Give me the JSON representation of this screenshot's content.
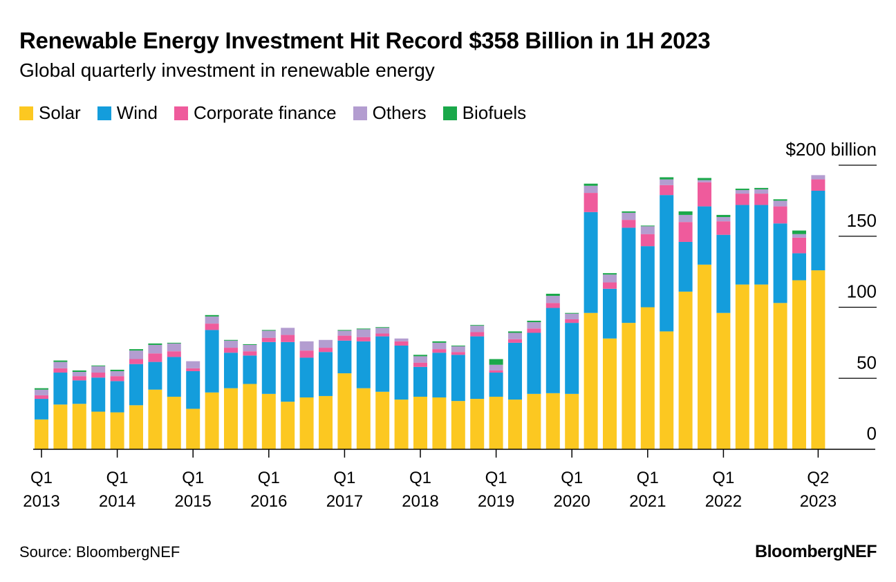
{
  "title": "Renewable Energy Investment Hit Record $358 Billion in 1H 2023",
  "subtitle": "Global quarterly investment in renewable energy",
  "source": "Source: BloombergNEF",
  "brand": "BloombergNEF",
  "colors": {
    "Solar": "#fcc821",
    "Wind": "#149ddc",
    "Corporate finance": "#ef5b9c",
    "Others": "#b39dd0",
    "Biofuels": "#1aa84a"
  },
  "chart_data": {
    "type": "bar",
    "stacked": true,
    "title": "Renewable Energy Investment Hit Record $358 Billion in 1H 2023",
    "subtitle": "Global quarterly investment in renewable energy",
    "xlabel": "",
    "ylabel": "",
    "ylim": [
      0,
      200
    ],
    "y_ticks": [
      {
        "value": 0,
        "label": "0"
      },
      {
        "value": 50,
        "label": "50"
      },
      {
        "value": 100,
        "label": "100"
      },
      {
        "value": 150,
        "label": "150"
      },
      {
        "value": 200,
        "label": "$200 billion"
      }
    ],
    "x_ticks": [
      {
        "index": 0,
        "line1": "Q1",
        "line2": "2013"
      },
      {
        "index": 4,
        "line1": "Q1",
        "line2": "2014"
      },
      {
        "index": 8,
        "line1": "Q1",
        "line2": "2015"
      },
      {
        "index": 12,
        "line1": "Q1",
        "line2": "2016"
      },
      {
        "index": 16,
        "line1": "Q1",
        "line2": "2017"
      },
      {
        "index": 20,
        "line1": "Q1",
        "line2": "2018"
      },
      {
        "index": 24,
        "line1": "Q1",
        "line2": "2019"
      },
      {
        "index": 28,
        "line1": "Q1",
        "line2": "2020"
      },
      {
        "index": 32,
        "line1": "Q1",
        "line2": "2021"
      },
      {
        "index": 36,
        "line1": "Q1",
        "line2": "2022"
      },
      {
        "index": 41,
        "line1": "Q2",
        "line2": "2023"
      }
    ],
    "legend_position": "top-left",
    "categories": [
      "Q1 2013",
      "Q2 2013",
      "Q3 2013",
      "Q4 2013",
      "Q1 2014",
      "Q2 2014",
      "Q3 2014",
      "Q4 2014",
      "Q1 2015",
      "Q2 2015",
      "Q3 2015",
      "Q4 2015",
      "Q1 2016",
      "Q2 2016",
      "Q3 2016",
      "Q4 2016",
      "Q1 2017",
      "Q2 2017",
      "Q3 2017",
      "Q4 2017",
      "Q1 2018",
      "Q2 2018",
      "Q3 2018",
      "Q4 2018",
      "Q1 2019",
      "Q2 2019",
      "Q3 2019",
      "Q4 2019",
      "Q1 2020",
      "Q2 2020",
      "Q3 2020",
      "Q4 2020",
      "Q1 2021",
      "Q2 2021",
      "Q3 2021",
      "Q4 2021",
      "Q1 2022",
      "Q2 2022",
      "Q3 2022",
      "Q4 2022",
      "Q1 2023",
      "Q2 2023"
    ],
    "series": [
      {
        "name": "Solar",
        "values": [
          21,
          31.5,
          32,
          26.5,
          26,
          31,
          42,
          37,
          28.5,
          40,
          43,
          46,
          39,
          33.5,
          36.5,
          37.5,
          53.5,
          43,
          40.5,
          35,
          37,
          36.5,
          34,
          35.5,
          37,
          35,
          39,
          39.5,
          39,
          96,
          78,
          89,
          100,
          83,
          111,
          130,
          96,
          116,
          116,
          103,
          119,
          126
        ]
      },
      {
        "name": "Wind",
        "values": [
          14.5,
          22.5,
          16.5,
          24,
          22,
          29,
          19.5,
          28,
          26.5,
          44,
          25,
          20,
          36.5,
          42,
          28,
          31,
          23,
          33,
          39,
          38,
          21,
          31.5,
          32.5,
          44,
          17,
          40,
          43,
          60,
          50,
          71,
          35,
          67,
          43,
          96,
          35,
          41,
          55,
          56,
          56,
          56,
          19,
          56
        ]
      },
      {
        "name": "Corporate finance",
        "values": [
          2.5,
          3,
          3,
          3.5,
          3.5,
          3.5,
          6,
          4,
          2,
          4.5,
          3.5,
          3,
          3,
          5,
          5,
          3,
          3.5,
          3,
          2,
          3,
          3,
          2.5,
          2,
          3,
          1.5,
          2.5,
          3,
          3.5,
          2.5,
          13.5,
          4.5,
          5.5,
          8.5,
          7,
          14,
          17,
          9.5,
          8,
          8,
          12,
          11,
          8
        ]
      },
      {
        "name": "Others",
        "values": [
          4,
          4.5,
          3,
          4.5,
          3.5,
          6,
          6,
          5.5,
          5,
          5,
          5,
          4.5,
          5,
          5,
          6.5,
          5.5,
          3.5,
          5.5,
          4,
          2,
          4.5,
          4.5,
          4,
          4.5,
          4,
          4.5,
          4.5,
          5,
          4,
          5,
          5.5,
          5,
          5.5,
          4,
          5,
          1.5,
          3,
          2.5,
          3,
          4,
          2.5,
          3
        ]
      },
      {
        "name": "Biofuels",
        "values": [
          1,
          1,
          1,
          0.5,
          1,
          1,
          1,
          0.5,
          0,
          1,
          0.5,
          0.5,
          0.5,
          0,
          0,
          0,
          0.5,
          0.5,
          0.5,
          0,
          1,
          1,
          0.5,
          0.5,
          4,
          1,
          1,
          1.5,
          0.5,
          1.5,
          1,
          1,
          0.5,
          1.5,
          2.5,
          1.5,
          1.5,
          1,
          1,
          1,
          2.5,
          0
        ]
      }
    ]
  }
}
